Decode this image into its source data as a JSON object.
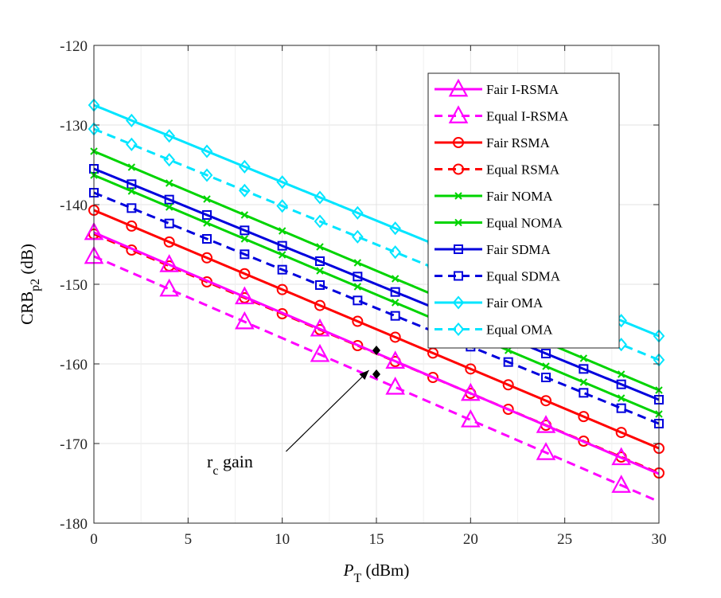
{
  "chart_data": {
    "type": "line",
    "title": "",
    "xlabel": {
      "main": "P",
      "sub": "T",
      "unit": " (dBm)"
    },
    "ylabel": {
      "main": "CRB",
      "sub": "p2",
      "unit": " (dB)"
    },
    "xlim": [
      0,
      30
    ],
    "ylim": [
      -180,
      -120
    ],
    "xticks": [
      0,
      5,
      10,
      15,
      20,
      25,
      30
    ],
    "yticks": [
      -120,
      -130,
      -140,
      -150,
      -160,
      -170,
      -180
    ],
    "grid": true,
    "legend_position": "top-right",
    "series": [
      {
        "name": "Fair I-RSMA",
        "color": "#ff00ff",
        "dash": "solid",
        "marker": "triangle",
        "x": [
          0,
          30
        ],
        "y": [
          -143.5,
          -173.8
        ],
        "marker_x": [
          0,
          4,
          8,
          12,
          16,
          20,
          24,
          28
        ]
      },
      {
        "name": "Equal I-RSMA",
        "color": "#ff00ff",
        "dash": "dashed",
        "marker": "triangle",
        "x": [
          0,
          30
        ],
        "y": [
          -146.5,
          -177.3
        ],
        "marker_x": [
          0,
          4,
          8,
          12,
          16,
          20,
          24,
          28
        ]
      },
      {
        "name": "Fair RSMA",
        "color": "#ff0000",
        "dash": "solid",
        "marker": "circle",
        "x": [
          0,
          30
        ],
        "y": [
          -140.7,
          -170.6
        ],
        "marker_x": [
          0,
          2,
          4,
          6,
          8,
          10,
          12,
          14,
          16,
          18,
          20,
          22,
          24,
          26,
          28,
          30
        ]
      },
      {
        "name": "Equal RSMA",
        "color": "#ff0000",
        "dash": "dashed",
        "marker": "circle",
        "x": [
          0,
          30
        ],
        "y": [
          -143.7,
          -173.7
        ],
        "marker_x": [
          0,
          2,
          4,
          6,
          8,
          10,
          12,
          14,
          16,
          18,
          20,
          22,
          24,
          26,
          28,
          30
        ]
      },
      {
        "name": "Fair NOMA",
        "color": "#00d400",
        "dash": "solid",
        "marker": "x",
        "x": [
          0,
          30
        ],
        "y": [
          -133.3,
          -163.3
        ],
        "marker_x": [
          0,
          2,
          4,
          6,
          8,
          10,
          12,
          14,
          16,
          18,
          20,
          22,
          24,
          26,
          28,
          30
        ]
      },
      {
        "name": "Equal NOMA",
        "color": "#00d400",
        "dash": "solid",
        "marker": "x",
        "x": [
          0,
          30
        ],
        "y": [
          -136.3,
          -166.3
        ],
        "marker_x": [
          0,
          2,
          4,
          6,
          8,
          10,
          12,
          14,
          16,
          18,
          20,
          22,
          24,
          26,
          28,
          30
        ]
      },
      {
        "name": "Fair SDMA",
        "color": "#0000dd",
        "dash": "solid",
        "marker": "square",
        "x": [
          0,
          30
        ],
        "y": [
          -135.5,
          -164.5
        ],
        "marker_x": [
          0,
          2,
          4,
          6,
          8,
          10,
          12,
          14,
          16,
          18,
          20,
          22,
          24,
          26,
          28,
          30
        ]
      },
      {
        "name": "Equal SDMA",
        "color": "#0000dd",
        "dash": "dashed",
        "marker": "square",
        "x": [
          0,
          30
        ],
        "y": [
          -138.5,
          -167.5
        ],
        "marker_x": [
          0,
          2,
          4,
          6,
          8,
          10,
          12,
          14,
          16,
          18,
          20,
          22,
          24,
          26,
          28,
          30
        ]
      },
      {
        "name": "Fair OMA",
        "color": "#00e5ff",
        "dash": "solid",
        "marker": "diamond",
        "x": [
          0,
          30
        ],
        "y": [
          -127.5,
          -156.5
        ],
        "marker_x": [
          0,
          2,
          4,
          6,
          8,
          10,
          12,
          14,
          16,
          18,
          20,
          22,
          24,
          26,
          28,
          30
        ]
      },
      {
        "name": "Equal OMA",
        "color": "#00e5ff",
        "dash": "dashed",
        "marker": "diamond",
        "x": [
          0,
          30
        ],
        "y": [
          -130.5,
          -159.5
        ],
        "marker_x": [
          0,
          2,
          4,
          6,
          8,
          10,
          12,
          14,
          16,
          18,
          20,
          22,
          24,
          26,
          28,
          30
        ]
      }
    ],
    "annotation": {
      "text_main": "r",
      "text_sub": "c",
      "text_rest": " gain",
      "points": [
        {
          "x": 15,
          "y": -158.3
        },
        {
          "x": 15,
          "y": -161.3
        }
      ],
      "label_at": {
        "x": 6,
        "y": -173
      },
      "arrow_from": {
        "x": 10.2,
        "y": -171
      },
      "arrow_to": {
        "x": 14.6,
        "y": -160.8
      }
    }
  }
}
